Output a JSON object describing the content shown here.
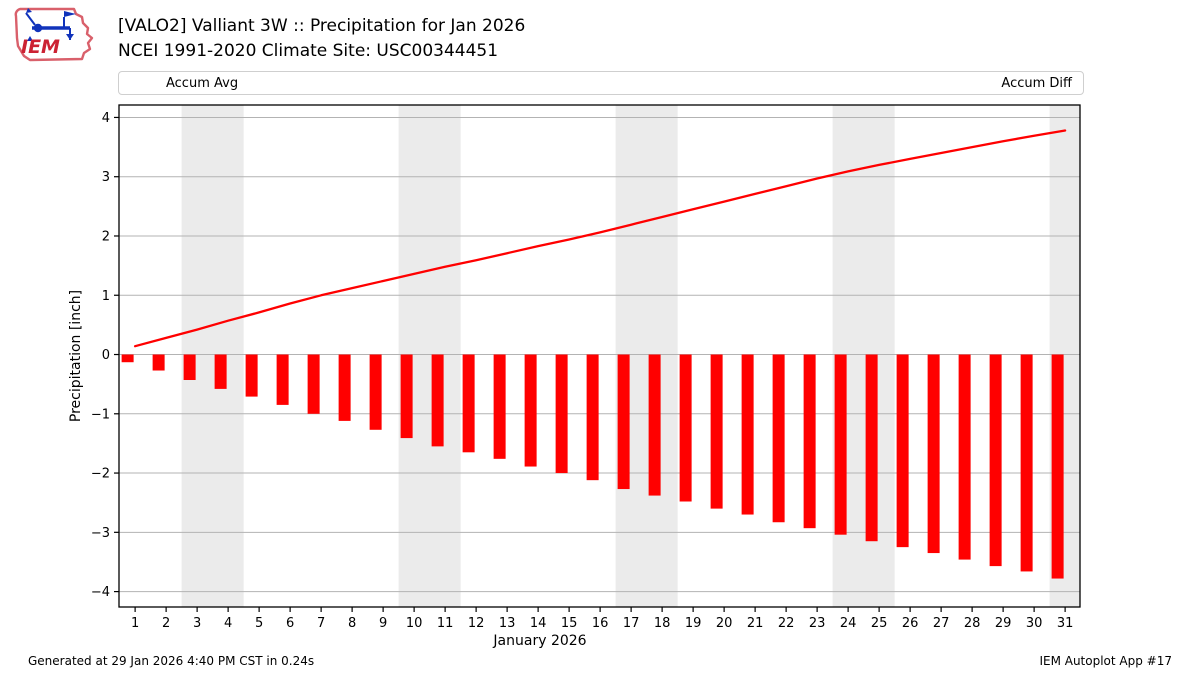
{
  "header": {
    "title_line1": "[VALO2] Valliant 3W :: Precipitation for Jan 2026",
    "title_line2": "NCEI 1991-2020 Climate Site: USC00344451",
    "logo_text": "IEM"
  },
  "legend": {
    "position": "top",
    "avg_label": "Accum Avg",
    "diff_label": "Accum Diff"
  },
  "footer": {
    "left": "Generated at 29 Jan 2026 4:40 PM CST in 0.24s",
    "right": "IEM Autoplot App #17"
  },
  "colors": {
    "series_red": "#ff0000",
    "weekend_band": "#ebebeb",
    "gridline": "#b3b3b3",
    "spine": "#000000",
    "logo_red": "#cc2233",
    "logo_blue": "#1133bb"
  },
  "chart_data": {
    "type": "line",
    "title": "[VALO2] Valliant 3W :: Precipitation for Jan 2026",
    "subtitle": "NCEI 1991-2020 Climate Site: USC00344451",
    "xlabel": "January 2026",
    "ylabel": "Precipitation [inch]",
    "x": [
      1,
      2,
      3,
      4,
      5,
      6,
      7,
      8,
      9,
      10,
      11,
      12,
      13,
      14,
      15,
      16,
      17,
      18,
      19,
      20,
      21,
      22,
      23,
      24,
      25,
      26,
      27,
      28,
      29,
      30,
      31
    ],
    "xticklabels": [
      "1",
      "2",
      "3",
      "4",
      "5",
      "6",
      "7",
      "8",
      "9",
      "10",
      "11",
      "12",
      "13",
      "14",
      "15",
      "16",
      "17",
      "18",
      "19",
      "20",
      "21",
      "22",
      "23",
      "24",
      "25",
      "26",
      "27",
      "28",
      "29",
      "30",
      "31"
    ],
    "series": [
      {
        "name": "Accum Avg",
        "type": "line",
        "color": "#ff0000",
        "values": [
          0.14,
          0.28,
          0.42,
          0.57,
          0.71,
          0.86,
          1.0,
          1.12,
          1.24,
          1.36,
          1.48,
          1.59,
          1.71,
          1.83,
          1.94,
          2.06,
          2.19,
          2.32,
          2.45,
          2.58,
          2.71,
          2.84,
          2.97,
          3.09,
          3.2,
          3.3,
          3.4,
          3.5,
          3.6,
          3.69,
          3.78
        ]
      },
      {
        "name": "Accum Diff",
        "type": "bar",
        "color": "#ff0000",
        "values": [
          -0.13,
          -0.27,
          -0.43,
          -0.58,
          -0.71,
          -0.85,
          -1.0,
          -1.12,
          -1.27,
          -1.41,
          -1.55,
          -1.65,
          -1.76,
          -1.89,
          -2.0,
          -2.12,
          -2.27,
          -2.38,
          -2.48,
          -2.6,
          -2.7,
          -2.83,
          -2.93,
          -3.04,
          -3.15,
          -3.25,
          -3.35,
          -3.46,
          -3.57,
          -3.66,
          -3.78
        ]
      }
    ],
    "yticks": [
      -4,
      -3,
      -2,
      -1,
      0,
      1,
      2,
      3,
      4
    ],
    "ylim": [
      -4.26,
      4.21
    ],
    "xlim": [
      0.48,
      31.48
    ],
    "grid": "horizontal",
    "weekend_bands": [
      [
        2.5,
        4.5
      ],
      [
        9.5,
        11.5
      ],
      [
        16.5,
        18.5
      ],
      [
        23.5,
        25.5
      ],
      [
        30.5,
        31.48
      ]
    ],
    "legend_position": "top"
  }
}
